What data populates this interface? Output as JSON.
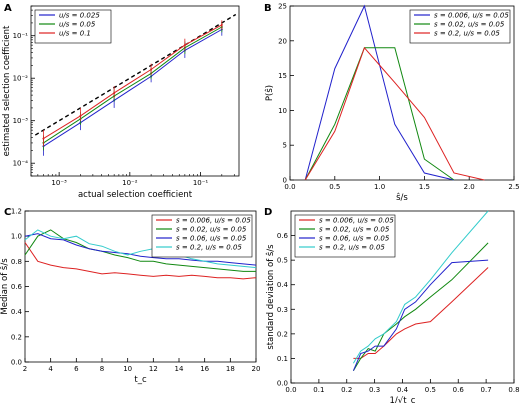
{
  "colors": {
    "blue": "#2222cc",
    "green": "#118811",
    "red": "#dd2222",
    "cyan": "#33cccc",
    "black": "#000000"
  },
  "chart_data": [
    {
      "panel": "A",
      "type": "scatter",
      "xlabel": "actual selection coefficient",
      "ylabel": "estimated selection coefficient",
      "xscale": "log",
      "yscale": "log",
      "xlim": [
        0.0004,
        0.35
      ],
      "ylim": [
        5e-05,
        0.5
      ],
      "xticks": [
        0.001,
        0.01,
        0.1
      ],
      "xtick_labels": [
        "10⁻³",
        "10⁻²",
        "10⁻¹"
      ],
      "yticks": [
        0.0001,
        0.001,
        0.01,
        0.1
      ],
      "ytick_labels": [
        "10⁻⁴",
        "10⁻³",
        "10⁻²",
        "10⁻¹"
      ],
      "legend": "top-left",
      "legend_entries": [
        "u/s = 0.025",
        "u/s = 0.05",
        "u/s = 0.1"
      ],
      "reference_line": "y = x",
      "x": [
        0.0006,
        0.002,
        0.006,
        0.02,
        0.06,
        0.2
      ],
      "series": [
        {
          "name": "u/s = 0.025",
          "color": "blue",
          "values": [
            0.00025,
            0.0009,
            0.003,
            0.011,
            0.045,
            0.14
          ],
          "err_low": [
            0.00015,
            0.0006,
            0.002,
            0.008,
            0.03,
            0.1
          ],
          "err_high": [
            0.0004,
            0.0014,
            0.005,
            0.016,
            0.07,
            0.19
          ]
        },
        {
          "name": "u/s = 0.05",
          "color": "green",
          "values": [
            0.0003,
            0.0011,
            0.0038,
            0.013,
            0.052,
            0.16
          ],
          "err_low": [
            0.0002,
            0.0008,
            0.0028,
            0.0095,
            0.037,
            0.12
          ],
          "err_high": [
            0.00045,
            0.0016,
            0.0055,
            0.018,
            0.074,
            0.21
          ]
        },
        {
          "name": "u/s = 0.1",
          "color": "red",
          "values": [
            0.00038,
            0.0013,
            0.0045,
            0.016,
            0.06,
            0.18
          ],
          "err_low": [
            0.00025,
            0.001,
            0.0034,
            0.012,
            0.045,
            0.14
          ],
          "err_high": [
            0.0006,
            0.002,
            0.0065,
            0.022,
            0.085,
            0.23
          ]
        }
      ]
    },
    {
      "panel": "B",
      "type": "line",
      "xlabel": "ŝ/s",
      "ylabel": "P(ŝ)",
      "xlim": [
        0,
        2.5
      ],
      "ylim": [
        0,
        25
      ],
      "xticks": [
        0,
        0.5,
        1.0,
        1.5,
        2.0,
        2.5
      ],
      "xtick_labels": [
        "0.0",
        "0.5",
        "1.0",
        "1.5",
        "2.0",
        "2.5"
      ],
      "yticks": [
        0,
        5,
        10,
        15,
        20,
        25
      ],
      "ytick_labels": [
        "0",
        "5",
        "10",
        "15",
        "20",
        "25"
      ],
      "legend": "top-right",
      "legend_entries": [
        "s = 0.006, u/s = 0.05",
        "s = 0.02, u/s = 0.05",
        "s = 0.2, u/s = 0.05"
      ],
      "series": [
        {
          "name": "s = 0.006, u/s = 0.05",
          "color": "blue",
          "x": [
            0.17,
            0.5,
            0.83,
            1.17,
            1.5,
            1.83
          ],
          "values": [
            0,
            16,
            25,
            8,
            1,
            0
          ]
        },
        {
          "name": "s = 0.02, u/s = 0.05",
          "color": "green",
          "x": [
            0.17,
            0.5,
            0.83,
            1.17,
            1.5,
            1.83
          ],
          "values": [
            0,
            8,
            19,
            19,
            3,
            0
          ]
        },
        {
          "name": "s = 0.2, u/s = 0.05",
          "color": "red",
          "x": [
            0.17,
            0.5,
            0.83,
            1.17,
            1.5,
            1.83,
            2.17
          ],
          "values": [
            0,
            7,
            19,
            14,
            9,
            1,
            0
          ]
        }
      ]
    },
    {
      "panel": "C",
      "type": "line",
      "xlabel": "t_c",
      "ylabel": "Median of ŝ/s",
      "xlim": [
        2,
        20
      ],
      "ylim": [
        0,
        1.2
      ],
      "xticks": [
        2,
        4,
        6,
        8,
        10,
        12,
        14,
        16,
        18,
        20
      ],
      "xtick_labels": [
        "2",
        "4",
        "6",
        "8",
        "10",
        "12",
        "14",
        "16",
        "18",
        "20"
      ],
      "yticks": [
        0,
        0.2,
        0.4,
        0.6,
        0.8,
        1.0,
        1.2
      ],
      "ytick_labels": [
        "0.0",
        "0.2",
        "0.4",
        "0.6",
        "0.8",
        "1.0",
        "1.2"
      ],
      "legend": "top-right",
      "legend_entries": [
        "s = 0.006, u/s = 0.05",
        "s = 0.02, u/s = 0.05",
        "s = 0.06, u/s = 0.05",
        "s = 0.2, u/s = 0.05"
      ],
      "x": [
        2,
        3,
        4,
        5,
        6,
        7,
        8,
        9,
        10,
        11,
        12,
        13,
        14,
        15,
        16,
        17,
        18,
        19,
        20
      ],
      "series": [
        {
          "name": "s = 0.006, u/s = 0.05",
          "color": "red",
          "values": [
            0.95,
            0.8,
            0.77,
            0.75,
            0.74,
            0.72,
            0.7,
            0.71,
            0.7,
            0.69,
            0.68,
            0.69,
            0.68,
            0.69,
            0.68,
            0.67,
            0.67,
            0.66,
            0.67
          ]
        },
        {
          "name": "s = 0.02, u/s = 0.05",
          "color": "green",
          "values": [
            0.85,
            1.0,
            1.05,
            0.98,
            0.95,
            0.9,
            0.88,
            0.85,
            0.83,
            0.8,
            0.8,
            0.78,
            0.77,
            0.76,
            0.75,
            0.74,
            0.73,
            0.72,
            0.72
          ]
        },
        {
          "name": "s = 0.06, u/s = 0.05",
          "color": "blue",
          "values": [
            1.0,
            1.02,
            0.98,
            0.97,
            0.93,
            0.9,
            0.88,
            0.87,
            0.86,
            0.84,
            0.83,
            0.82,
            0.82,
            0.81,
            0.8,
            0.8,
            0.79,
            0.78,
            0.77
          ]
        },
        {
          "name": "s = 0.2, u/s = 0.05",
          "color": "cyan",
          "values": [
            0.97,
            1.05,
            1.0,
            0.98,
            1.0,
            0.94,
            0.92,
            0.88,
            0.85,
            0.88,
            0.9,
            0.88,
            0.85,
            0.82,
            0.8,
            0.78,
            0.77,
            0.76,
            0.75
          ]
        }
      ]
    },
    {
      "panel": "D",
      "type": "line",
      "xlabel": "1/√t_c",
      "ylabel": "standard deviation of ŝ/s",
      "xlim": [
        0,
        0.8
      ],
      "ylim": [
        0,
        0.7
      ],
      "xticks": [
        0,
        0.1,
        0.2,
        0.3,
        0.4,
        0.5,
        0.6,
        0.7,
        0.8
      ],
      "xtick_labels": [
        "0.0",
        "0.1",
        "0.2",
        "0.3",
        "0.4",
        "0.5",
        "0.6",
        "0.7",
        "0.8"
      ],
      "yticks": [
        0,
        0.1,
        0.2,
        0.3,
        0.4,
        0.5,
        0.6
      ],
      "ytick_labels": [
        "0.0",
        "0.1",
        "0.2",
        "0.3",
        "0.4",
        "0.5",
        "0.6"
      ],
      "legend": "top-left",
      "legend_entries": [
        "s = 0.006, u/s = 0.05",
        "s = 0.02, u/s = 0.05",
        "s = 0.06, u/s = 0.05",
        "s = 0.2, u/s = 0.05"
      ],
      "series": [
        {
          "name": "s = 0.006, u/s = 0.05",
          "color": "red",
          "x": [
            0.224,
            0.25,
            0.277,
            0.302,
            0.333,
            0.378,
            0.408,
            0.447,
            0.5,
            0.577,
            0.707
          ],
          "values": [
            0.1,
            0.1,
            0.12,
            0.12,
            0.15,
            0.2,
            0.22,
            0.24,
            0.25,
            0.33,
            0.47
          ]
        },
        {
          "name": "s = 0.02, u/s = 0.05",
          "color": "green",
          "x": [
            0.224,
            0.25,
            0.277,
            0.302,
            0.333,
            0.378,
            0.408,
            0.447,
            0.5,
            0.577,
            0.707
          ],
          "values": [
            0.05,
            0.1,
            0.14,
            0.13,
            0.2,
            0.24,
            0.27,
            0.3,
            0.35,
            0.42,
            0.57
          ]
        },
        {
          "name": "s = 0.06, u/s = 0.05",
          "color": "blue",
          "x": [
            0.224,
            0.25,
            0.277,
            0.302,
            0.333,
            0.378,
            0.408,
            0.447,
            0.5,
            0.577,
            0.707
          ],
          "values": [
            0.05,
            0.12,
            0.13,
            0.15,
            0.15,
            0.22,
            0.3,
            0.33,
            0.4,
            0.49,
            0.5
          ]
        },
        {
          "name": "s = 0.2, u/s = 0.05",
          "color": "cyan",
          "x": [
            0.224,
            0.25,
            0.277,
            0.302,
            0.333,
            0.378,
            0.408,
            0.447,
            0.5,
            0.577,
            0.707
          ],
          "values": [
            0.08,
            0.13,
            0.15,
            0.18,
            0.2,
            0.25,
            0.32,
            0.35,
            0.42,
            0.53,
            0.7
          ]
        }
      ]
    }
  ]
}
